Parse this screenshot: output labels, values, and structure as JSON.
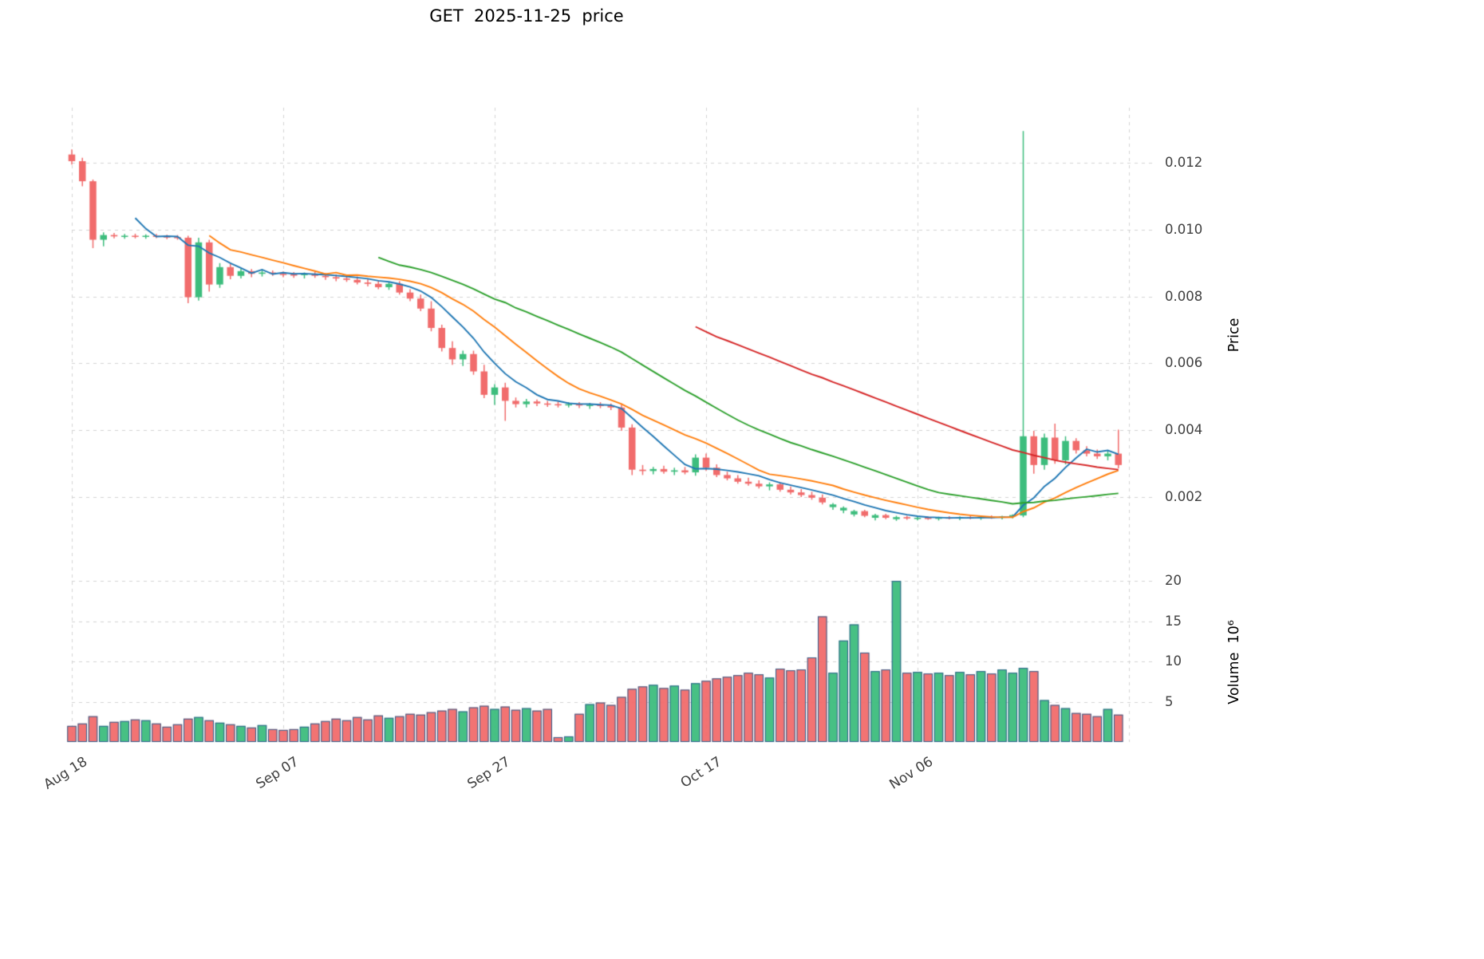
{
  "title": "GET  2025-11-25  price",
  "chart_data": {
    "type": "candlestick",
    "title": "GET  2025-11-25  price",
    "symbol": "GET",
    "as_of_date": "2025-11-25",
    "legend_position": "none",
    "grid": "dashed",
    "x_tick_labels": [
      "Aug 18",
      "Sep 07",
      "Sep 27",
      "Oct 17",
      "Nov 06"
    ],
    "x_tick_indices": [
      0,
      20,
      40,
      60,
      80
    ],
    "x_grid_extra_indices": [
      100
    ],
    "price_axis": {
      "label": "Price",
      "side": "right",
      "tick_values": [
        0.002,
        0.004,
        0.006,
        0.008,
        0.01,
        0.012
      ],
      "range": [
        0.00107,
        0.01365
      ]
    },
    "volume_axis": {
      "label": "Volume  10⁶",
      "side": "right",
      "unit": "millions",
      "tick_values": [
        5,
        10,
        15,
        20
      ],
      "range": [
        0,
        21.3
      ]
    },
    "moving_averages": [
      {
        "name": "ma-short",
        "window": 7,
        "color": "#1f77b4"
      },
      {
        "name": "ma-medium",
        "window": 14,
        "color": "#ff7f0e"
      },
      {
        "name": "ma-long",
        "window": 30,
        "color": "#2ca02c"
      },
      {
        "name": "ma-longest",
        "window": 60,
        "color": "#d62728"
      }
    ],
    "colors": {
      "up": "#3dbd7d",
      "down": "#f16c6c",
      "volume_edge": "#31618f",
      "grid": "#d4d4d4",
      "tick_label": "#3f3f3f",
      "title": "#000000"
    },
    "dates": [
      "2025-08-18",
      "2025-08-19",
      "2025-08-20",
      "2025-08-21",
      "2025-08-22",
      "2025-08-23",
      "2025-08-24",
      "2025-08-25",
      "2025-08-26",
      "2025-08-27",
      "2025-08-28",
      "2025-08-29",
      "2025-08-30",
      "2025-08-31",
      "2025-09-01",
      "2025-09-02",
      "2025-09-03",
      "2025-09-04",
      "2025-09-05",
      "2025-09-06",
      "2025-09-07",
      "2025-09-08",
      "2025-09-09",
      "2025-09-10",
      "2025-09-11",
      "2025-09-12",
      "2025-09-13",
      "2025-09-14",
      "2025-09-15",
      "2025-09-16",
      "2025-09-17",
      "2025-09-18",
      "2025-09-19",
      "2025-09-20",
      "2025-09-21",
      "2025-09-22",
      "2025-09-23",
      "2025-09-24",
      "2025-09-25",
      "2025-09-26",
      "2025-09-27",
      "2025-09-28",
      "2025-09-29",
      "2025-09-30",
      "2025-10-01",
      "2025-10-02",
      "2025-10-03",
      "2025-10-04",
      "2025-10-05",
      "2025-10-06",
      "2025-10-07",
      "2025-10-08",
      "2025-10-09",
      "2025-10-10",
      "2025-10-11",
      "2025-10-12",
      "2025-10-13",
      "2025-10-14",
      "2025-10-15",
      "2025-10-16",
      "2025-10-17",
      "2025-10-18",
      "2025-10-19",
      "2025-10-20",
      "2025-10-21",
      "2025-10-22",
      "2025-10-23",
      "2025-10-24",
      "2025-10-25",
      "2025-10-26",
      "2025-10-27",
      "2025-10-28",
      "2025-10-29",
      "2025-10-30",
      "2025-10-31",
      "2025-11-01",
      "2025-11-02",
      "2025-11-03",
      "2025-11-04",
      "2025-11-05",
      "2025-11-06",
      "2025-11-07",
      "2025-11-08",
      "2025-11-09",
      "2025-11-10",
      "2025-11-11",
      "2025-11-12",
      "2025-11-13",
      "2025-11-14",
      "2025-11-15",
      "2025-11-16",
      "2025-11-17",
      "2025-11-18",
      "2025-11-19",
      "2025-11-20",
      "2025-11-21",
      "2025-11-22",
      "2025-11-23",
      "2025-11-24",
      "2025-11-25"
    ],
    "open": [
      0.01225,
      0.01205,
      0.01145,
      0.0097,
      0.00984,
      0.0098,
      0.00982,
      0.00979,
      0.00982,
      0.0098,
      0.00978,
      0.00976,
      0.00798,
      0.00962,
      0.00836,
      0.00888,
      0.00862,
      0.00876,
      0.00868,
      0.00872,
      0.00868,
      0.00866,
      0.00864,
      0.00868,
      0.00862,
      0.00858,
      0.00854,
      0.0085,
      0.00842,
      0.00838,
      0.00828,
      0.00838,
      0.00812,
      0.00794,
      0.00764,
      0.00706,
      0.00646,
      0.00612,
      0.00628,
      0.00576,
      0.00506,
      0.00528,
      0.00488,
      0.00478,
      0.00486,
      0.0048,
      0.00478,
      0.00476,
      0.00478,
      0.00474,
      0.00476,
      0.00474,
      0.00468,
      0.00408,
      0.00282,
      0.00278,
      0.00284,
      0.00276,
      0.0028,
      0.00274,
      0.00318,
      0.00288,
      0.00266,
      0.00256,
      0.00246,
      0.0024,
      0.00232,
      0.00238,
      0.00222,
      0.00214,
      0.00206,
      0.00198,
      0.0017,
      0.0016,
      0.00148,
      0.00158,
      0.00138,
      0.00146,
      0.00134,
      0.0014,
      0.00135,
      0.00138,
      0.00135,
      0.00139,
      0.00136,
      0.0014,
      0.00137,
      0.00141,
      0.00138,
      0.00142,
      0.00145,
      0.00382,
      0.00296,
      0.00378,
      0.0031,
      0.00368,
      0.0034,
      0.0033,
      0.00322,
      0.0033
    ],
    "high": [
      0.0124,
      0.01215,
      0.0115,
      0.00992,
      0.0099,
      0.00987,
      0.00988,
      0.00986,
      0.00987,
      0.00985,
      0.00984,
      0.00982,
      0.00976,
      0.0097,
      0.009,
      0.00898,
      0.00884,
      0.00882,
      0.0088,
      0.00878,
      0.00875,
      0.00873,
      0.00872,
      0.00874,
      0.0087,
      0.00866,
      0.00864,
      0.0086,
      0.00854,
      0.00848,
      0.00844,
      0.00846,
      0.00822,
      0.00806,
      0.00786,
      0.00716,
      0.00666,
      0.00638,
      0.00638,
      0.00596,
      0.00538,
      0.00542,
      0.00498,
      0.00494,
      0.00492,
      0.00488,
      0.00486,
      0.00484,
      0.00484,
      0.00482,
      0.00484,
      0.0048,
      0.00478,
      0.00418,
      0.00296,
      0.0029,
      0.00294,
      0.00288,
      0.0029,
      0.00328,
      0.0033,
      0.00298,
      0.00276,
      0.00266,
      0.00258,
      0.0025,
      0.00244,
      0.00244,
      0.00232,
      0.00224,
      0.00216,
      0.00208,
      0.00182,
      0.00172,
      0.00162,
      0.00162,
      0.0015,
      0.0015,
      0.00144,
      0.00144,
      0.00141,
      0.00142,
      0.00141,
      0.00143,
      0.00142,
      0.00144,
      0.00143,
      0.00145,
      0.00144,
      0.00148,
      0.01295,
      0.00398,
      0.0039,
      0.0042,
      0.00382,
      0.00376,
      0.00352,
      0.00342,
      0.00338,
      0.00402
    ],
    "low": [
      0.01195,
      0.0113,
      0.00945,
      0.0095,
      0.00974,
      0.00973,
      0.00974,
      0.00973,
      0.00975,
      0.00972,
      0.0097,
      0.0078,
      0.00788,
      0.00815,
      0.00826,
      0.00852,
      0.00854,
      0.00858,
      0.0086,
      0.00862,
      0.00858,
      0.00856,
      0.00854,
      0.00856,
      0.0085,
      0.00846,
      0.00844,
      0.00836,
      0.0083,
      0.00822,
      0.0082,
      0.00806,
      0.00786,
      0.00756,
      0.00696,
      0.00636,
      0.00596,
      0.00592,
      0.00566,
      0.00496,
      0.00476,
      0.00428,
      0.00468,
      0.00468,
      0.00472,
      0.0047,
      0.00468,
      0.00468,
      0.00466,
      0.00464,
      0.00466,
      0.0046,
      0.00398,
      0.00266,
      0.00266,
      0.00268,
      0.0027,
      0.00266,
      0.00268,
      0.00264,
      0.00278,
      0.0026,
      0.0025,
      0.0024,
      0.00234,
      0.00226,
      0.0022,
      0.00216,
      0.00208,
      0.002,
      0.00192,
      0.00178,
      0.00162,
      0.00152,
      0.00142,
      0.0014,
      0.0013,
      0.00134,
      0.00129,
      0.00132,
      0.0013,
      0.00132,
      0.0013,
      0.00133,
      0.00131,
      0.00134,
      0.00132,
      0.00135,
      0.00133,
      0.00136,
      0.0014,
      0.0027,
      0.00282,
      0.003,
      0.00298,
      0.0033,
      0.00322,
      0.00314,
      0.0031,
      0.00286
    ],
    "close": [
      0.01205,
      0.01145,
      0.0097,
      0.00984,
      0.0098,
      0.00982,
      0.00979,
      0.00982,
      0.0098,
      0.00978,
      0.00976,
      0.00798,
      0.00962,
      0.00836,
      0.00888,
      0.00862,
      0.00876,
      0.00868,
      0.00872,
      0.00868,
      0.00866,
      0.00864,
      0.00868,
      0.00862,
      0.00858,
      0.00854,
      0.0085,
      0.00842,
      0.00838,
      0.00828,
      0.00838,
      0.00812,
      0.00794,
      0.00764,
      0.00706,
      0.00646,
      0.00612,
      0.00628,
      0.00576,
      0.00506,
      0.00528,
      0.00488,
      0.00478,
      0.00486,
      0.0048,
      0.00478,
      0.00476,
      0.00478,
      0.00474,
      0.00476,
      0.00474,
      0.00468,
      0.00408,
      0.00282,
      0.00278,
      0.00284,
      0.00276,
      0.0028,
      0.00274,
      0.00318,
      0.00288,
      0.00266,
      0.00256,
      0.00246,
      0.0024,
      0.00232,
      0.00238,
      0.00222,
      0.00214,
      0.00206,
      0.00198,
      0.00184,
      0.00178,
      0.00168,
      0.00158,
      0.00144,
      0.00146,
      0.00138,
      0.0014,
      0.00136,
      0.00138,
      0.00136,
      0.00139,
      0.00137,
      0.0014,
      0.00138,
      0.00141,
      0.00139,
      0.00142,
      0.00146,
      0.00382,
      0.00296,
      0.00378,
      0.0031,
      0.00368,
      0.0034,
      0.0033,
      0.00322,
      0.0033,
      0.00296
    ],
    "volume_millions": [
      2.0,
      2.3,
      3.2,
      2.0,
      2.5,
      2.6,
      2.8,
      2.7,
      2.3,
      1.9,
      2.2,
      2.9,
      3.1,
      2.7,
      2.4,
      2.2,
      2.0,
      1.8,
      2.1,
      1.6,
      1.5,
      1.6,
      1.9,
      2.3,
      2.6,
      2.9,
      2.7,
      3.1,
      2.8,
      3.3,
      3.0,
      3.2,
      3.5,
      3.4,
      3.7,
      3.9,
      4.1,
      3.8,
      4.3,
      4.5,
      4.1,
      4.4,
      4.0,
      4.2,
      3.9,
      4.1,
      0.6,
      0.7,
      3.5,
      4.7,
      4.9,
      4.6,
      5.6,
      6.6,
      6.9,
      7.1,
      6.7,
      7.0,
      6.5,
      7.3,
      7.6,
      7.9,
      8.1,
      8.3,
      8.6,
      8.4,
      8.0,
      9.1,
      8.9,
      9.0,
      10.5,
      15.6,
      8.6,
      12.6,
      14.6,
      11.1,
      8.8,
      9.0,
      20.0,
      8.6,
      8.7,
      8.5,
      8.6,
      8.3,
      8.7,
      8.4,
      8.8,
      8.5,
      9.0,
      8.6,
      9.2,
      8.8,
      5.2,
      4.6,
      4.2,
      3.6,
      3.5,
      3.2,
      4.1,
      3.4
    ]
  }
}
